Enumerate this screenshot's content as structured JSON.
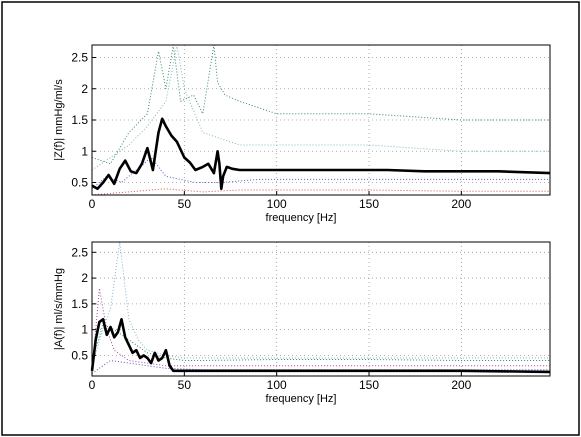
{
  "chart_data": [
    {
      "type": "line",
      "title": "",
      "xlabel": "frequency   [Hz]",
      "ylabel": "|Z(f)|  mmHg/ml/s",
      "xlim": [
        0,
        248
      ],
      "ylim": [
        0.3,
        2.7
      ],
      "xticks": [
        0,
        50,
        100,
        150,
        200
      ],
      "yticks": [
        0.5,
        1,
        1.5,
        2,
        2.5
      ],
      "grid": true,
      "series": [
        {
          "color": "#000000",
          "style": "solid",
          "emphasis": true,
          "x": [
            0,
            3,
            6,
            9,
            12,
            15,
            18,
            21,
            24,
            27,
            30,
            33,
            36,
            38,
            40,
            43,
            46,
            50,
            53,
            56,
            60,
            63,
            66,
            68,
            69,
            70,
            71,
            73,
            76,
            80,
            90,
            100,
            120,
            140,
            160,
            180,
            200,
            220,
            248
          ],
          "y": [
            0.45,
            0.4,
            0.5,
            0.62,
            0.48,
            0.72,
            0.85,
            0.68,
            0.65,
            0.8,
            1.05,
            0.7,
            1.3,
            1.52,
            1.4,
            1.25,
            1.15,
            0.9,
            0.82,
            0.7,
            0.75,
            0.8,
            0.65,
            1.0,
            0.8,
            0.4,
            0.6,
            0.75,
            0.72,
            0.7,
            0.7,
            0.7,
            0.7,
            0.7,
            0.7,
            0.68,
            0.68,
            0.68,
            0.65
          ]
        },
        {
          "color": "#2e8b57",
          "style": "dotted",
          "emphasis": false,
          "x": [
            0,
            10,
            20,
            30,
            36,
            40,
            44,
            48,
            55,
            60,
            66,
            68,
            72,
            80,
            100,
            150,
            200,
            248
          ],
          "y": [
            0.9,
            0.8,
            1.3,
            1.6,
            2.6,
            2.0,
            2.7,
            1.8,
            1.9,
            1.6,
            2.7,
            2.1,
            1.9,
            1.8,
            1.6,
            1.6,
            1.5,
            1.5
          ]
        },
        {
          "color": "#7fb3c9",
          "style": "dotted",
          "emphasis": false,
          "x": [
            0,
            10,
            20,
            30,
            40,
            46,
            50,
            60,
            70,
            80,
            100,
            150,
            200,
            248
          ],
          "y": [
            0.7,
            0.9,
            1.1,
            1.4,
            1.8,
            2.7,
            2.0,
            1.3,
            1.2,
            1.1,
            1.1,
            1.1,
            1.0,
            1.0
          ]
        },
        {
          "color": "#5555cc",
          "style": "dotted",
          "emphasis": false,
          "x": [
            0,
            8,
            16,
            24,
            32,
            40,
            48,
            56,
            70,
            90,
            120,
            160,
            200,
            248
          ],
          "y": [
            0.4,
            0.6,
            0.5,
            0.7,
            0.9,
            0.6,
            0.55,
            0.5,
            0.5,
            0.55,
            0.55,
            0.55,
            0.55,
            0.55
          ]
        },
        {
          "color": "#d05050",
          "style": "dotted",
          "emphasis": false,
          "x": [
            0,
            20,
            40,
            60,
            80,
            100,
            150,
            200,
            248
          ],
          "y": [
            0.3,
            0.35,
            0.4,
            0.35,
            0.38,
            0.38,
            0.38,
            0.36,
            0.36
          ]
        }
      ]
    },
    {
      "type": "line",
      "title": "",
      "xlabel": "frequency   [Hz]",
      "ylabel": "|A(f)|  ml/s/mmHg",
      "xlim": [
        0,
        248
      ],
      "ylim": [
        0.1,
        2.7
      ],
      "xticks": [
        0,
        50,
        100,
        150,
        200
      ],
      "yticks": [
        0.5,
        1,
        1.5,
        2,
        2.5
      ],
      "grid": true,
      "series": [
        {
          "color": "#000000",
          "style": "solid",
          "emphasis": true,
          "x": [
            0,
            2,
            4,
            6,
            8,
            10,
            12,
            14,
            16,
            18,
            20,
            22,
            24,
            26,
            28,
            30,
            32,
            34,
            36,
            38,
            40,
            42,
            44,
            46,
            50,
            60,
            80,
            100,
            150,
            200,
            248
          ],
          "y": [
            0.2,
            0.8,
            1.15,
            1.2,
            0.9,
            1.05,
            0.85,
            0.95,
            1.2,
            0.85,
            0.7,
            0.55,
            0.6,
            0.45,
            0.5,
            0.45,
            0.35,
            0.55,
            0.4,
            0.45,
            0.6,
            0.3,
            0.2,
            0.2,
            0.2,
            0.2,
            0.2,
            0.2,
            0.2,
            0.2,
            0.18
          ]
        },
        {
          "color": "#7fb3c9",
          "style": "dotted",
          "emphasis": false,
          "x": [
            0,
            5,
            10,
            15,
            18,
            20,
            25,
            30,
            40,
            50,
            70,
            100,
            150,
            200,
            248
          ],
          "y": [
            0.3,
            0.9,
            1.4,
            2.7,
            1.8,
            1.2,
            0.8,
            0.6,
            0.5,
            0.45,
            0.45,
            0.45,
            0.45,
            0.45,
            0.45
          ]
        },
        {
          "color": "#2e8b57",
          "style": "dotted",
          "emphasis": false,
          "x": [
            0,
            6,
            12,
            20,
            30,
            40,
            50,
            60,
            100,
            150,
            200,
            248
          ],
          "y": [
            0.4,
            1.1,
            1.0,
            0.8,
            0.55,
            0.45,
            0.4,
            0.4,
            0.42,
            0.42,
            0.4,
            0.4
          ]
        },
        {
          "color": "#aa44aa",
          "style": "dotted",
          "emphasis": false,
          "x": [
            0,
            4,
            8,
            12,
            16,
            20,
            30,
            40,
            60,
            100,
            150,
            200,
            248
          ],
          "y": [
            0.2,
            1.8,
            1.0,
            0.6,
            0.5,
            0.4,
            0.35,
            0.3,
            0.3,
            0.3,
            0.3,
            0.3,
            0.3
          ]
        },
        {
          "color": "#5555cc",
          "style": "dotted",
          "emphasis": false,
          "x": [
            0,
            10,
            20,
            30,
            40,
            60,
            100,
            150,
            200,
            248
          ],
          "y": [
            0.15,
            0.4,
            0.35,
            0.3,
            0.25,
            0.22,
            0.22,
            0.22,
            0.22,
            0.22
          ]
        }
      ]
    }
  ]
}
